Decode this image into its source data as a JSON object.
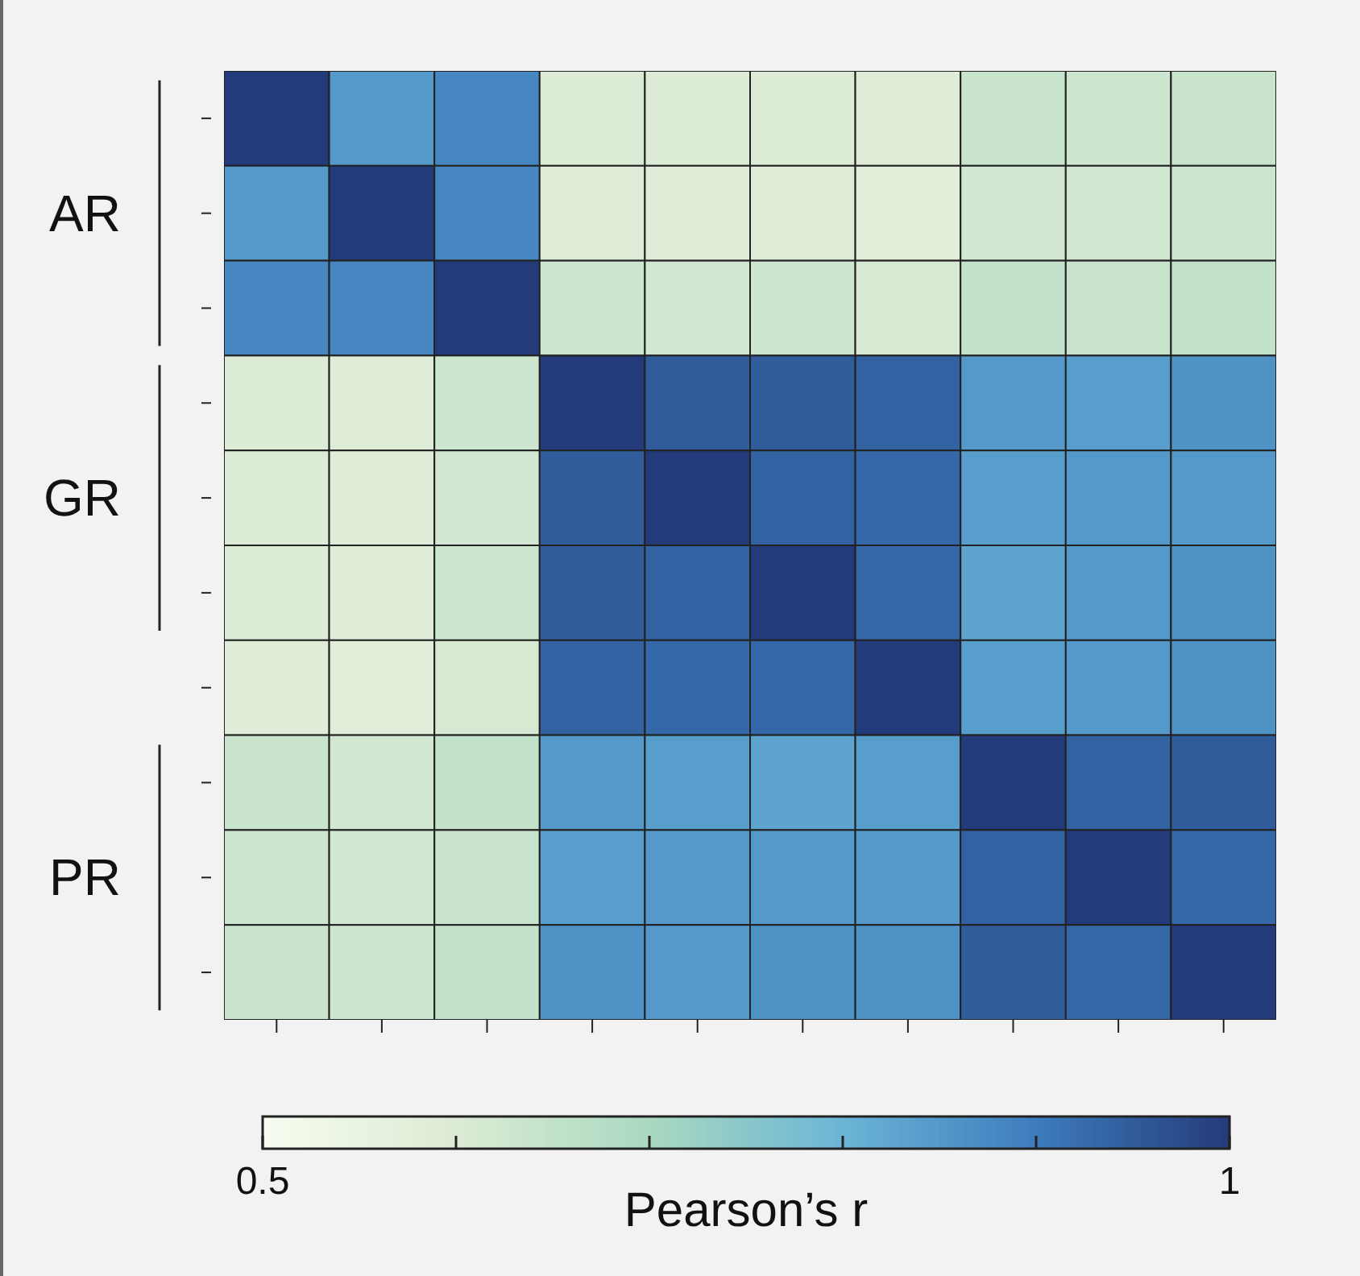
{
  "chart_data": {
    "type": "heatmap",
    "categories": [
      null,
      null,
      null,
      null,
      null,
      null,
      null,
      null,
      null,
      null
    ],
    "y_categories": [
      null,
      "AR",
      null,
      null,
      "GR",
      null,
      null,
      null,
      "PR",
      null
    ],
    "cells": [
      [
        1,
        0.85,
        0.88,
        0.6,
        0.6,
        0.6,
        0.59,
        0.64,
        0.63,
        0.64
      ],
      [
        0.85,
        1,
        0.88,
        0.59,
        0.59,
        0.59,
        0.58,
        0.62,
        0.62,
        0.63
      ],
      [
        0.88,
        0.88,
        1,
        0.63,
        0.62,
        0.63,
        0.61,
        0.65,
        0.64,
        0.65
      ],
      [
        0.6,
        0.59,
        0.63,
        1,
        0.95,
        0.95,
        0.94,
        0.85,
        0.84,
        0.86
      ],
      [
        0.6,
        0.59,
        0.62,
        0.95,
        1,
        0.94,
        0.93,
        0.84,
        0.85,
        0.85
      ],
      [
        0.6,
        0.59,
        0.63,
        0.95,
        0.94,
        1,
        0.93,
        0.83,
        0.85,
        0.86
      ],
      [
        0.59,
        0.58,
        0.61,
        0.94,
        0.93,
        0.93,
        1,
        0.84,
        0.85,
        0.86
      ],
      [
        0.64,
        0.62,
        0.65,
        0.85,
        0.84,
        0.83,
        0.84,
        1,
        0.94,
        0.95
      ],
      [
        0.63,
        0.62,
        0.64,
        0.84,
        0.85,
        0.85,
        0.85,
        0.94,
        1,
        0.93
      ],
      [
        0.64,
        0.63,
        0.65,
        0.86,
        0.85,
        0.86,
        0.86,
        0.95,
        0.93,
        1
      ]
    ],
    "clim": [
      0.5,
      1
    ],
    "cticks": [
      0.5,
      {
        "value": 0.6,
        "label": null
      },
      {
        "value": 0.7,
        "label": null
      },
      {
        "value": 0.8,
        "label": null
      },
      {
        "value": 0.9,
        "label": null
      },
      1
    ],
    "clabel": "Pearson’s r"
  }
}
